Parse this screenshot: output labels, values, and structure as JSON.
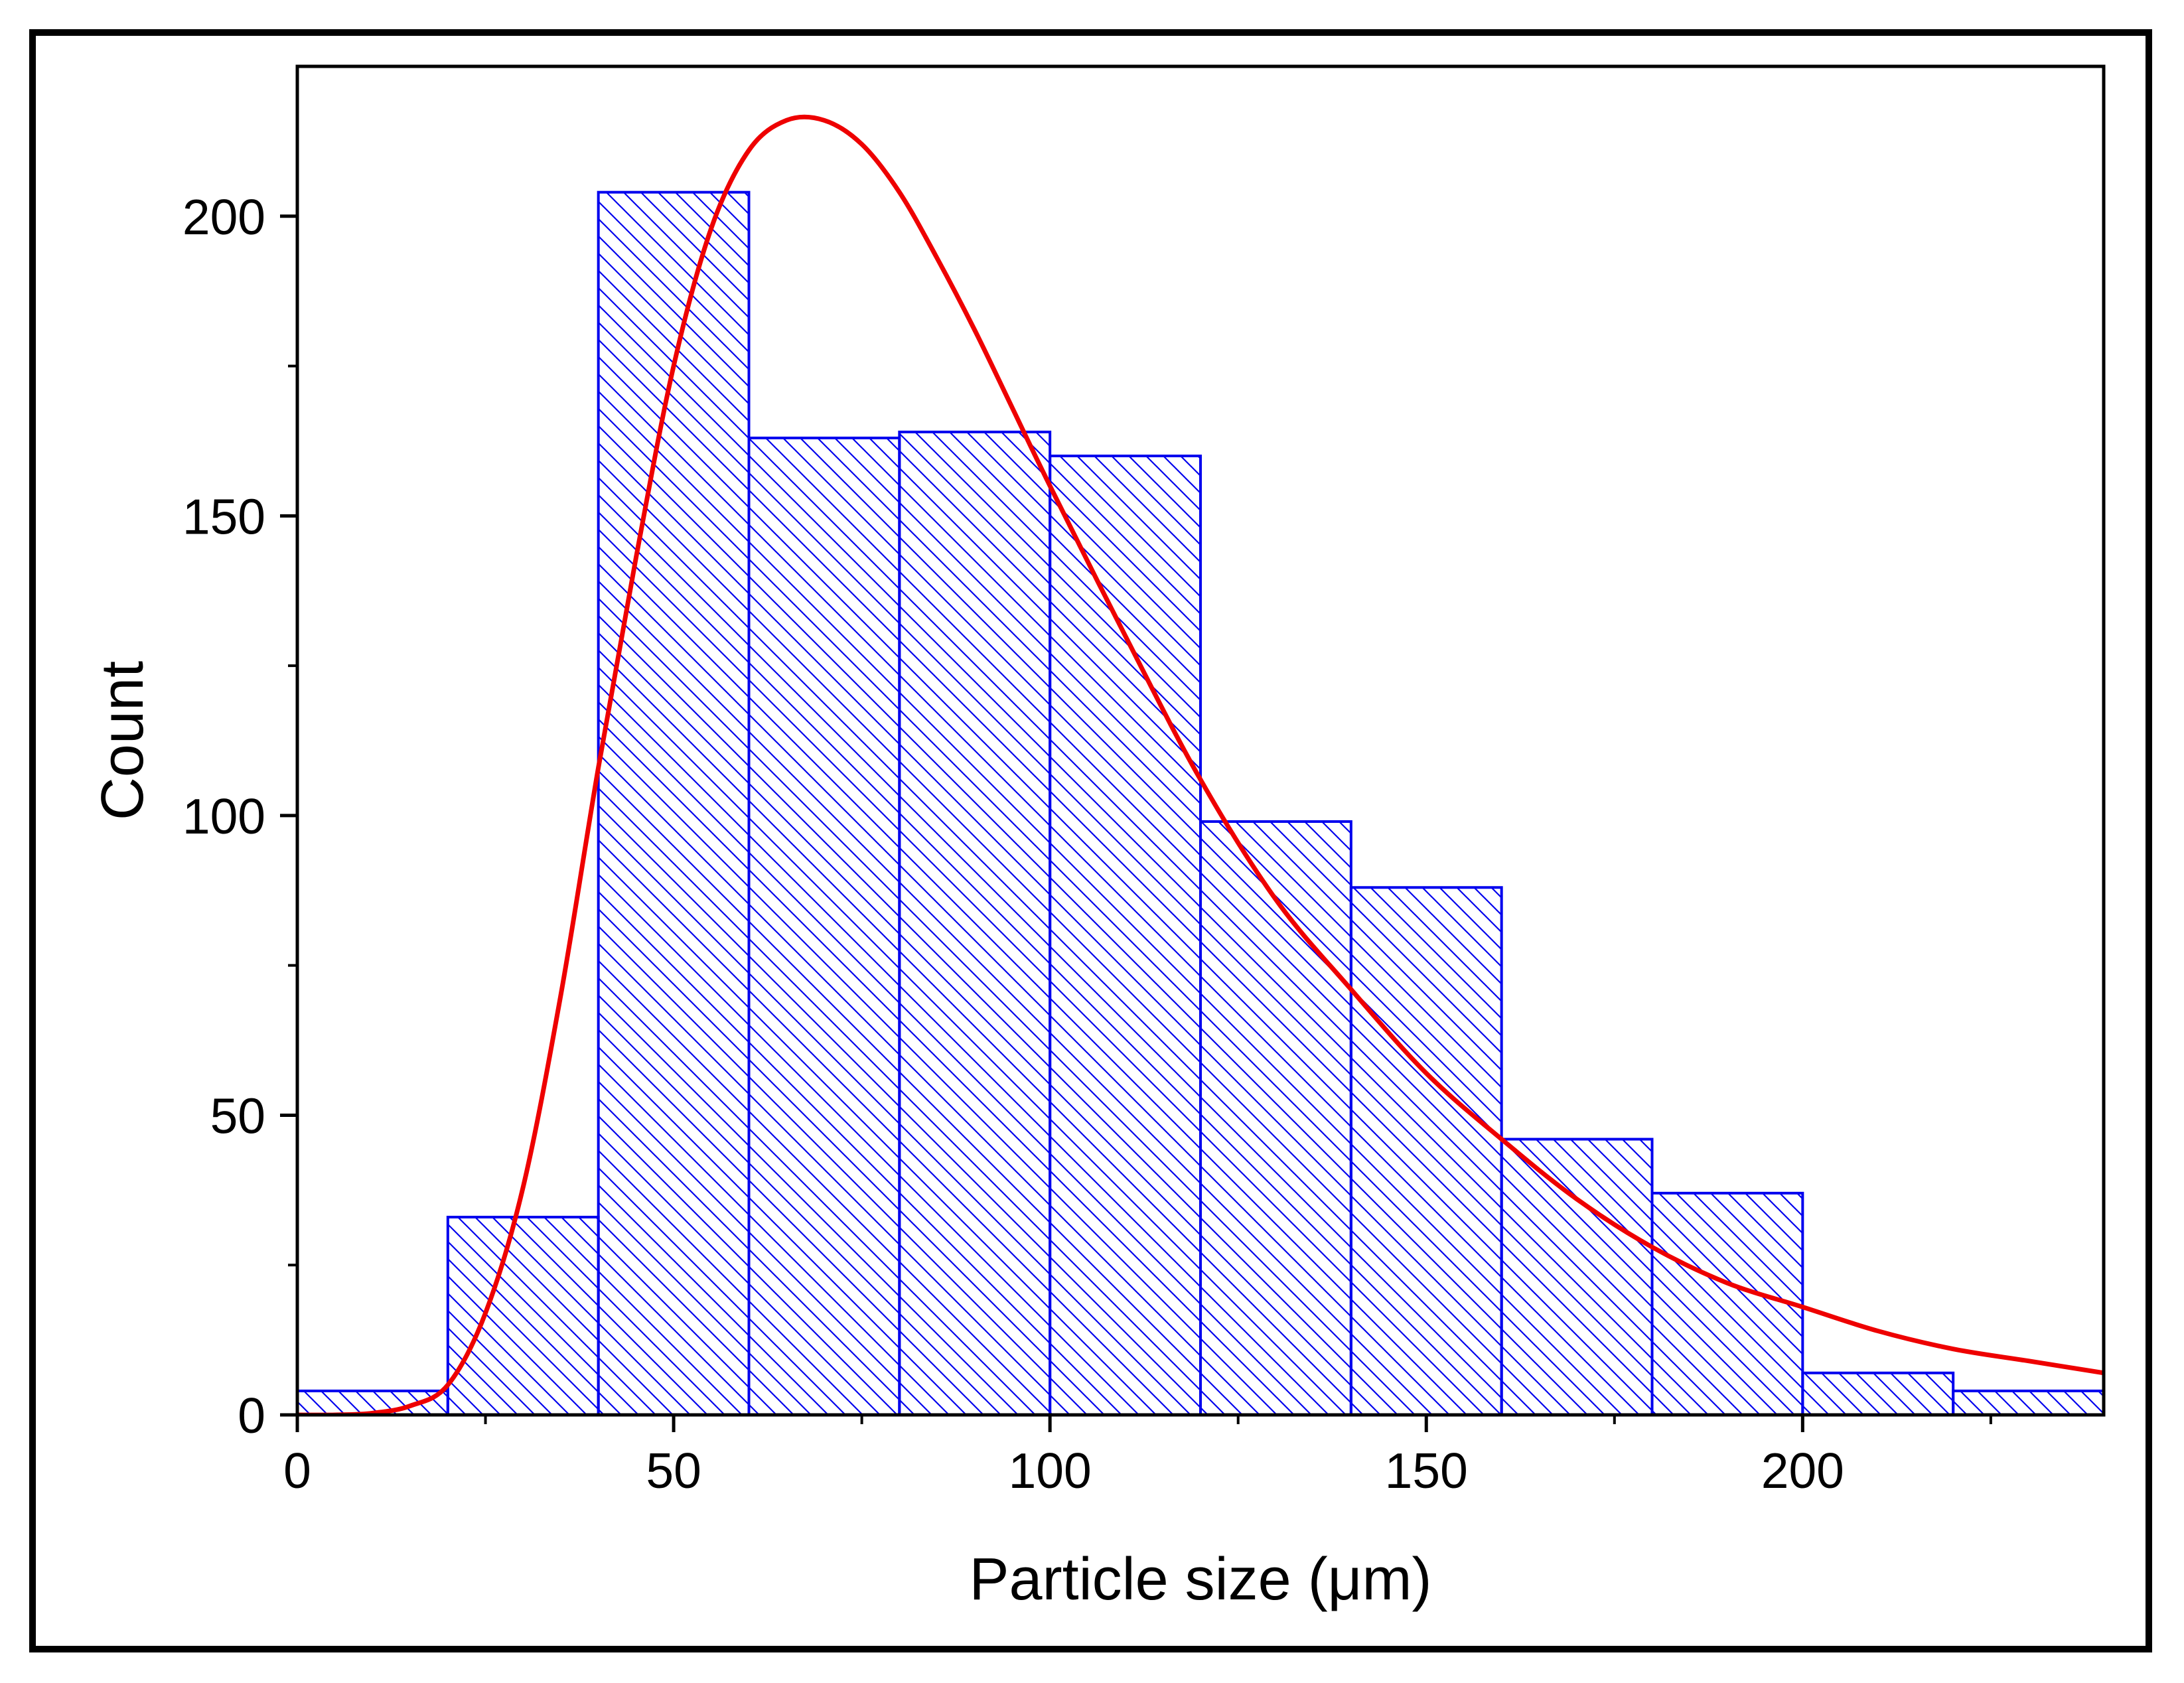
{
  "chart_data": {
    "type": "bar",
    "subtype": "histogram",
    "title": "",
    "xlabel": "Particle size (μm)",
    "ylabel": "Count",
    "xlim": [
      0,
      240
    ],
    "ylim": [
      0,
      225
    ],
    "x_ticks": [
      0,
      50,
      100,
      150,
      200
    ],
    "y_ticks": [
      0,
      50,
      100,
      150,
      200
    ],
    "x_minor_step": 25,
    "y_minor_step": 25,
    "bins": [
      {
        "start": 0,
        "end": 20,
        "count": 4
      },
      {
        "start": 20,
        "end": 40,
        "count": 33
      },
      {
        "start": 40,
        "end": 60,
        "count": 204
      },
      {
        "start": 60,
        "end": 80,
        "count": 163
      },
      {
        "start": 80,
        "end": 100,
        "count": 164
      },
      {
        "start": 100,
        "end": 120,
        "count": 160
      },
      {
        "start": 120,
        "end": 140,
        "count": 99
      },
      {
        "start": 140,
        "end": 160,
        "count": 88
      },
      {
        "start": 160,
        "end": 180,
        "count": 46
      },
      {
        "start": 180,
        "end": 200,
        "count": 37
      },
      {
        "start": 200,
        "end": 220,
        "count": 7
      },
      {
        "start": 220,
        "end": 240,
        "count": 4
      }
    ],
    "fit_curve": {
      "type": "lognormal",
      "x": [
        0,
        5,
        10,
        15,
        20,
        25,
        30,
        35,
        40,
        45,
        50,
        55,
        60,
        65,
        70,
        75,
        80,
        85,
        90,
        95,
        100,
        110,
        120,
        130,
        140,
        150,
        160,
        170,
        180,
        190,
        200,
        210,
        220,
        230,
        240
      ],
      "y": [
        0,
        0,
        0.3,
        1.5,
        5,
        17,
        38,
        70,
        108,
        143,
        175,
        198,
        211,
        216,
        216,
        212,
        204,
        193,
        181,
        168,
        155,
        130,
        106,
        86,
        71,
        57,
        46,
        36,
        28,
        22,
        18,
        14,
        11,
        9,
        7
      ]
    },
    "colors": {
      "bar_edge": "#0000ee",
      "hatch": "#0000ee",
      "fit": "#ee0000",
      "axis": "#000000"
    }
  }
}
